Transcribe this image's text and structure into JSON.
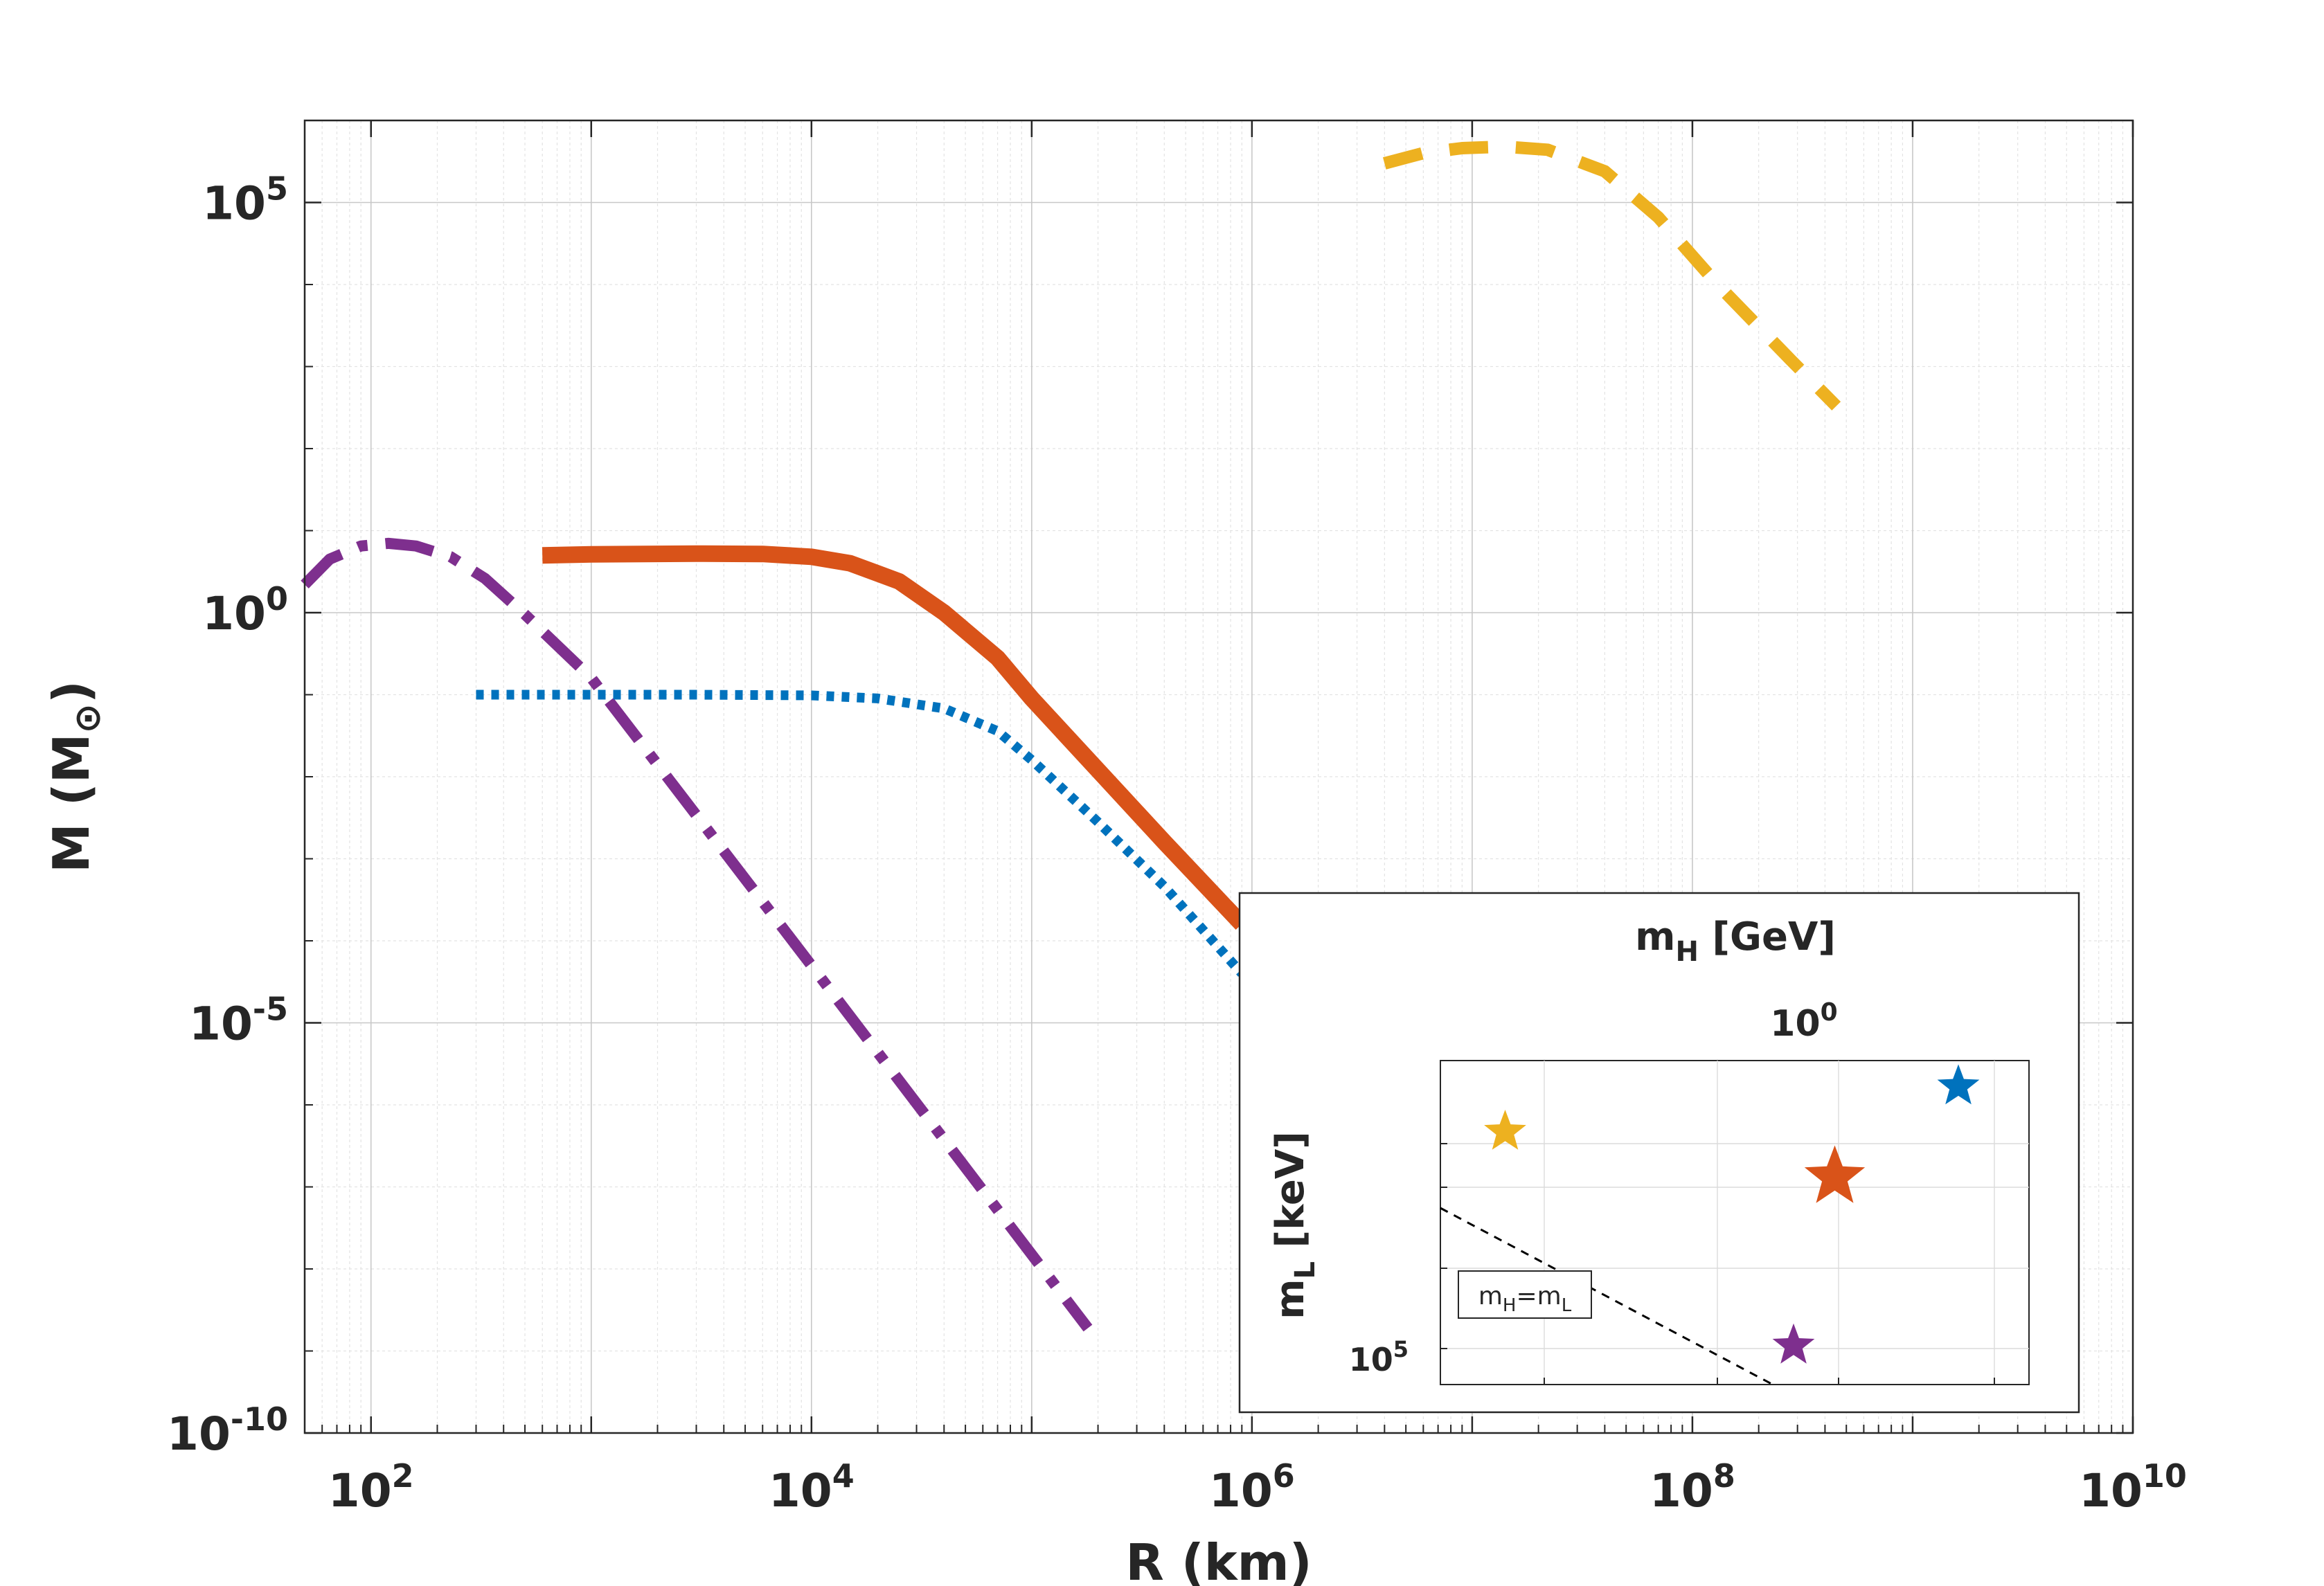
{
  "chart_data": {
    "type": "line",
    "xscale": "log",
    "yscale": "log",
    "xlabel": "R (km)",
    "ylabel": "M (M",
    "ylabel_symbol": "⊙",
    "xlim": [
      50,
      10000000000
    ],
    "ylim": [
      1e-10,
      1000000
    ],
    "xticks": [
      {
        "value": 100,
        "base": "10",
        "exp": "2"
      },
      {
        "value": 10000,
        "base": "10",
        "exp": "4"
      },
      {
        "value": 1000000,
        "base": "10",
        "exp": "6"
      },
      {
        "value": 100000000,
        "base": "10",
        "exp": "8"
      },
      {
        "value": 10000000000,
        "base": "10",
        "exp": "10"
      }
    ],
    "yticks": [
      {
        "value": 1e-10,
        "base": "10",
        "exp": "-10"
      },
      {
        "value": 1e-05,
        "base": "10",
        "exp": "-5"
      },
      {
        "value": 1,
        "base": "10",
        "exp": "0"
      },
      {
        "value": 100000,
        "base": "10",
        "exp": "5"
      }
    ],
    "grid": true,
    "series": [
      {
        "name": "purple-dashed",
        "color": "#7e2f8e",
        "style": "dashdot",
        "points": [
          [
            50,
            2.2
          ],
          [
            65,
            4.5
          ],
          [
            90,
            6.5
          ],
          [
            120,
            7.0
          ],
          [
            160,
            6.5
          ],
          [
            230,
            4.8
          ],
          [
            330,
            2.6
          ],
          [
            500,
            0.95
          ],
          [
            1000,
            0.16
          ],
          [
            10000,
            5e-05
          ],
          [
            100000,
            1.5e-08
          ],
          [
            180000,
            1.9e-09
          ]
        ]
      },
      {
        "name": "blue-dotted",
        "color": "#0072bd",
        "style": "dotted",
        "points": [
          [
            300,
            0.1
          ],
          [
            1000,
            0.1
          ],
          [
            3000,
            0.1
          ],
          [
            10000,
            0.098
          ],
          [
            20000,
            0.09
          ],
          [
            40000,
            0.068
          ],
          [
            70000,
            0.036
          ],
          [
            100000,
            0.016
          ],
          [
            200000,
            0.0028
          ],
          [
            400000,
            0.00046
          ],
          [
            900000,
            4e-05
          ]
        ]
      },
      {
        "name": "orange-solid",
        "color": "#d95319",
        "style": "solid",
        "points": [
          [
            600,
            5.0
          ],
          [
            1000,
            5.15
          ],
          [
            3000,
            5.25
          ],
          [
            6000,
            5.2
          ],
          [
            10000,
            4.8
          ],
          [
            15000,
            4.0
          ],
          [
            25000,
            2.4
          ],
          [
            40000,
            1.0
          ],
          [
            70000,
            0.28
          ],
          [
            100000,
            0.09
          ],
          [
            200000,
            0.012
          ],
          [
            400000,
            0.0016
          ],
          [
            900000,
            0.00016
          ]
        ]
      },
      {
        "name": "yellow-dashed",
        "color": "#edb120",
        "style": "dashed",
        "points": [
          [
            4000000,
            300000
          ],
          [
            6000000,
            400000
          ],
          [
            9000000,
            460000
          ],
          [
            14000000,
            480000
          ],
          [
            22000000,
            440000
          ],
          [
            40000000,
            240000
          ],
          [
            70000000,
            66000
          ],
          [
            130000000,
            10000
          ],
          [
            280000000,
            1200
          ],
          [
            450000000,
            330
          ]
        ]
      }
    ],
    "inset": {
      "title": "m",
      "title_sub": "H",
      "title_unit": " [GeV]",
      "top_tick": {
        "base": "10",
        "exp": "0"
      },
      "ylabel": "m",
      "ylabel_sub": "L",
      "ylabel_unit": " [keV]",
      "left_tick": {
        "base": "10",
        "exp": "5"
      },
      "line_label": "m",
      "line_label_sub1": "H",
      "line_label_eq": "=m",
      "line_label_sub2": "L",
      "markers": [
        {
          "name": "yellow-star",
          "color": "#edb120",
          "mH_frac": 0.11,
          "mL_frac": 0.78,
          "size": "small"
        },
        {
          "name": "blue-star",
          "color": "#0072bd",
          "mH_frac": 0.88,
          "mL_frac": 0.92,
          "size": "small"
        },
        {
          "name": "orange-star",
          "color": "#d95319",
          "mH_frac": 0.67,
          "mL_frac": 0.64,
          "size": "large"
        },
        {
          "name": "purple-star",
          "color": "#7e2f8e",
          "mH_frac": 0.6,
          "mL_frac": 0.12,
          "size": "small"
        }
      ]
    }
  }
}
